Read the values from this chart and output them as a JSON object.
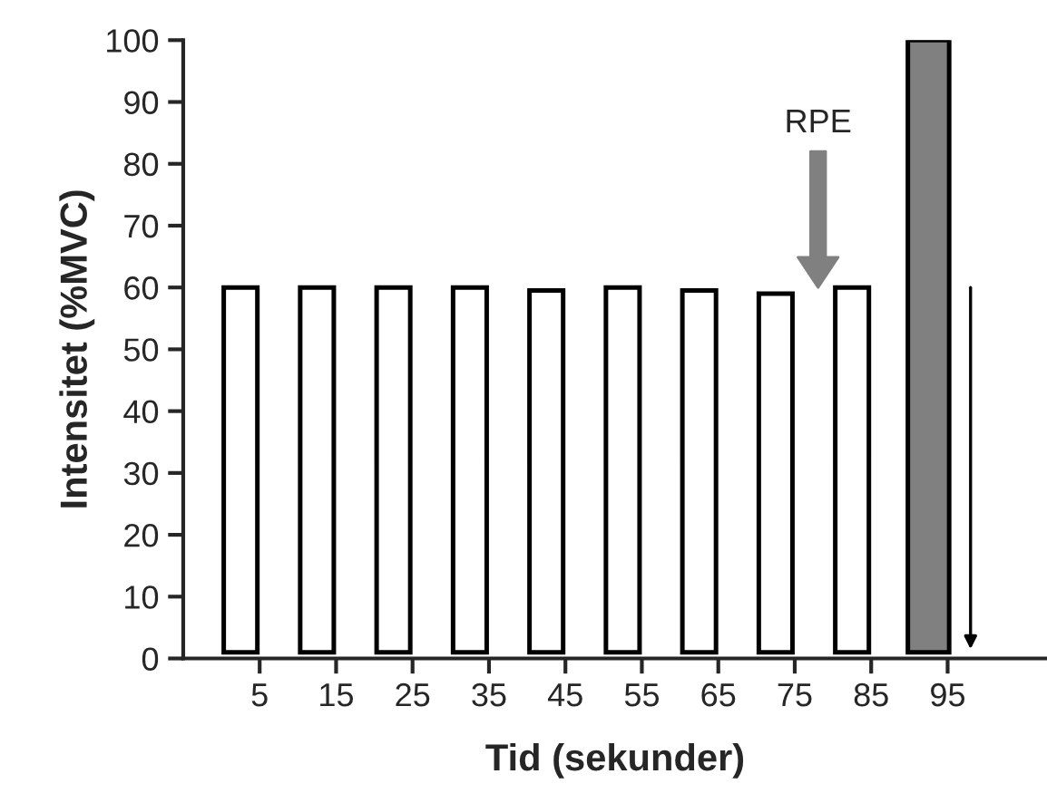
{
  "chart_data": {
    "type": "bar",
    "xlabel": "Tid (sekunder)",
    "ylabel": "Intensitet (%MVC)",
    "x": [
      2.5,
      12.5,
      22.5,
      32.5,
      42.5,
      52.5,
      62.5,
      72.5,
      82.5,
      92.5
    ],
    "values": [
      59,
      59,
      59,
      59,
      58.5,
      59,
      58.5,
      58,
      59,
      99
    ],
    "base": [
      1,
      1,
      1,
      1,
      1,
      1,
      1,
      1,
      1,
      1
    ],
    "colors": [
      "#ffffff",
      "#ffffff",
      "#ffffff",
      "#ffffff",
      "#ffffff",
      "#ffffff",
      "#ffffff",
      "#ffffff",
      "#ffffff",
      "#808080"
    ],
    "xlim": [
      -5,
      108
    ],
    "xticks": [
      5,
      15,
      25,
      35,
      45,
      55,
      65,
      75,
      85,
      95
    ],
    "ylim": [
      0,
      100
    ],
    "yticks": [
      0,
      10,
      20,
      30,
      40,
      50,
      60,
      70,
      80,
      90,
      100
    ],
    "grid": false,
    "legend": false,
    "annotations": [
      "RPE"
    ]
  }
}
